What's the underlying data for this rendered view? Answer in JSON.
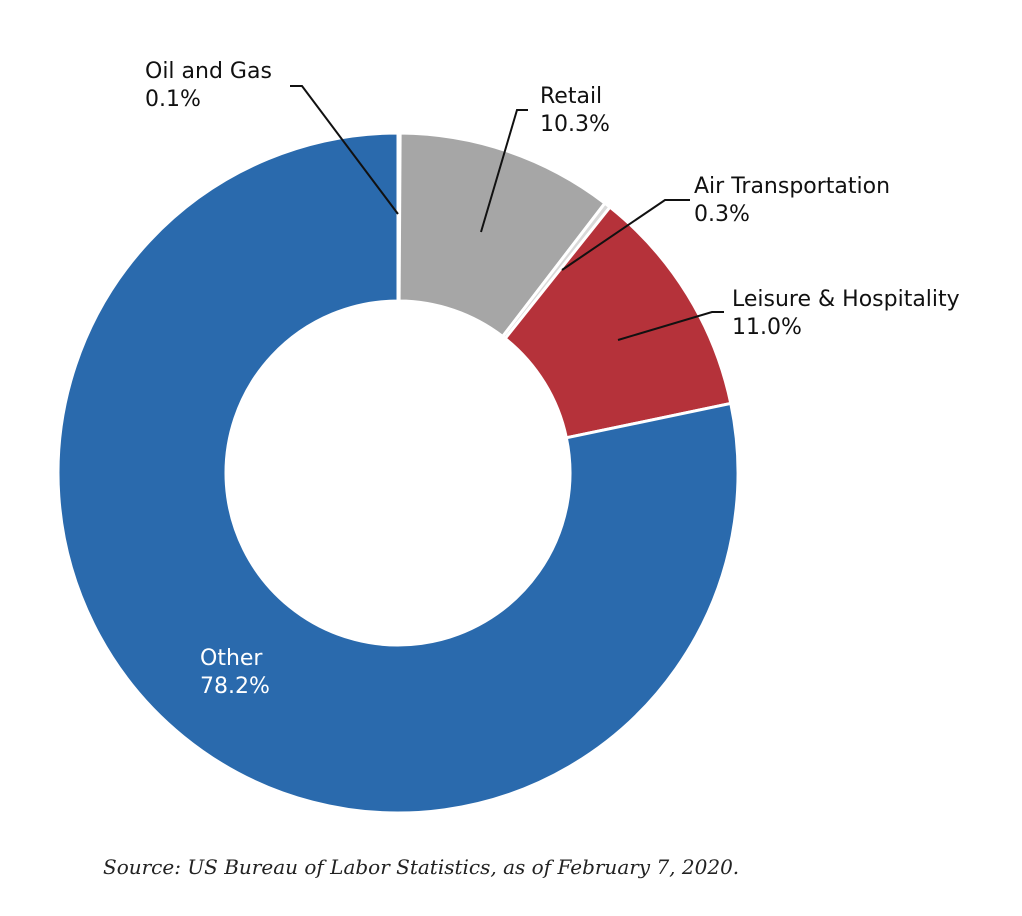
{
  "chart_data": {
    "type": "pie",
    "variant": "donut",
    "title": "",
    "slices": [
      {
        "name": "Oil and Gas",
        "value": 0.1,
        "label": "0.1%",
        "color": "#f0a830"
      },
      {
        "name": "Retail",
        "value": 10.3,
        "label": "10.3%",
        "color": "#a6a6a6"
      },
      {
        "name": "Air Transportation",
        "value": 0.3,
        "label": "0.3%",
        "color": "#d9d9d9"
      },
      {
        "name": "Leisure & Hospitality",
        "value": 11.0,
        "label": "11.0%",
        "color": "#b5323a"
      },
      {
        "name": "Other",
        "value": 78.2,
        "label": "78.2%",
        "color": "#2a6aad"
      }
    ],
    "legend": "none"
  },
  "source": "Source: US Bureau of Labor Statistics, as of February 7, 2020."
}
